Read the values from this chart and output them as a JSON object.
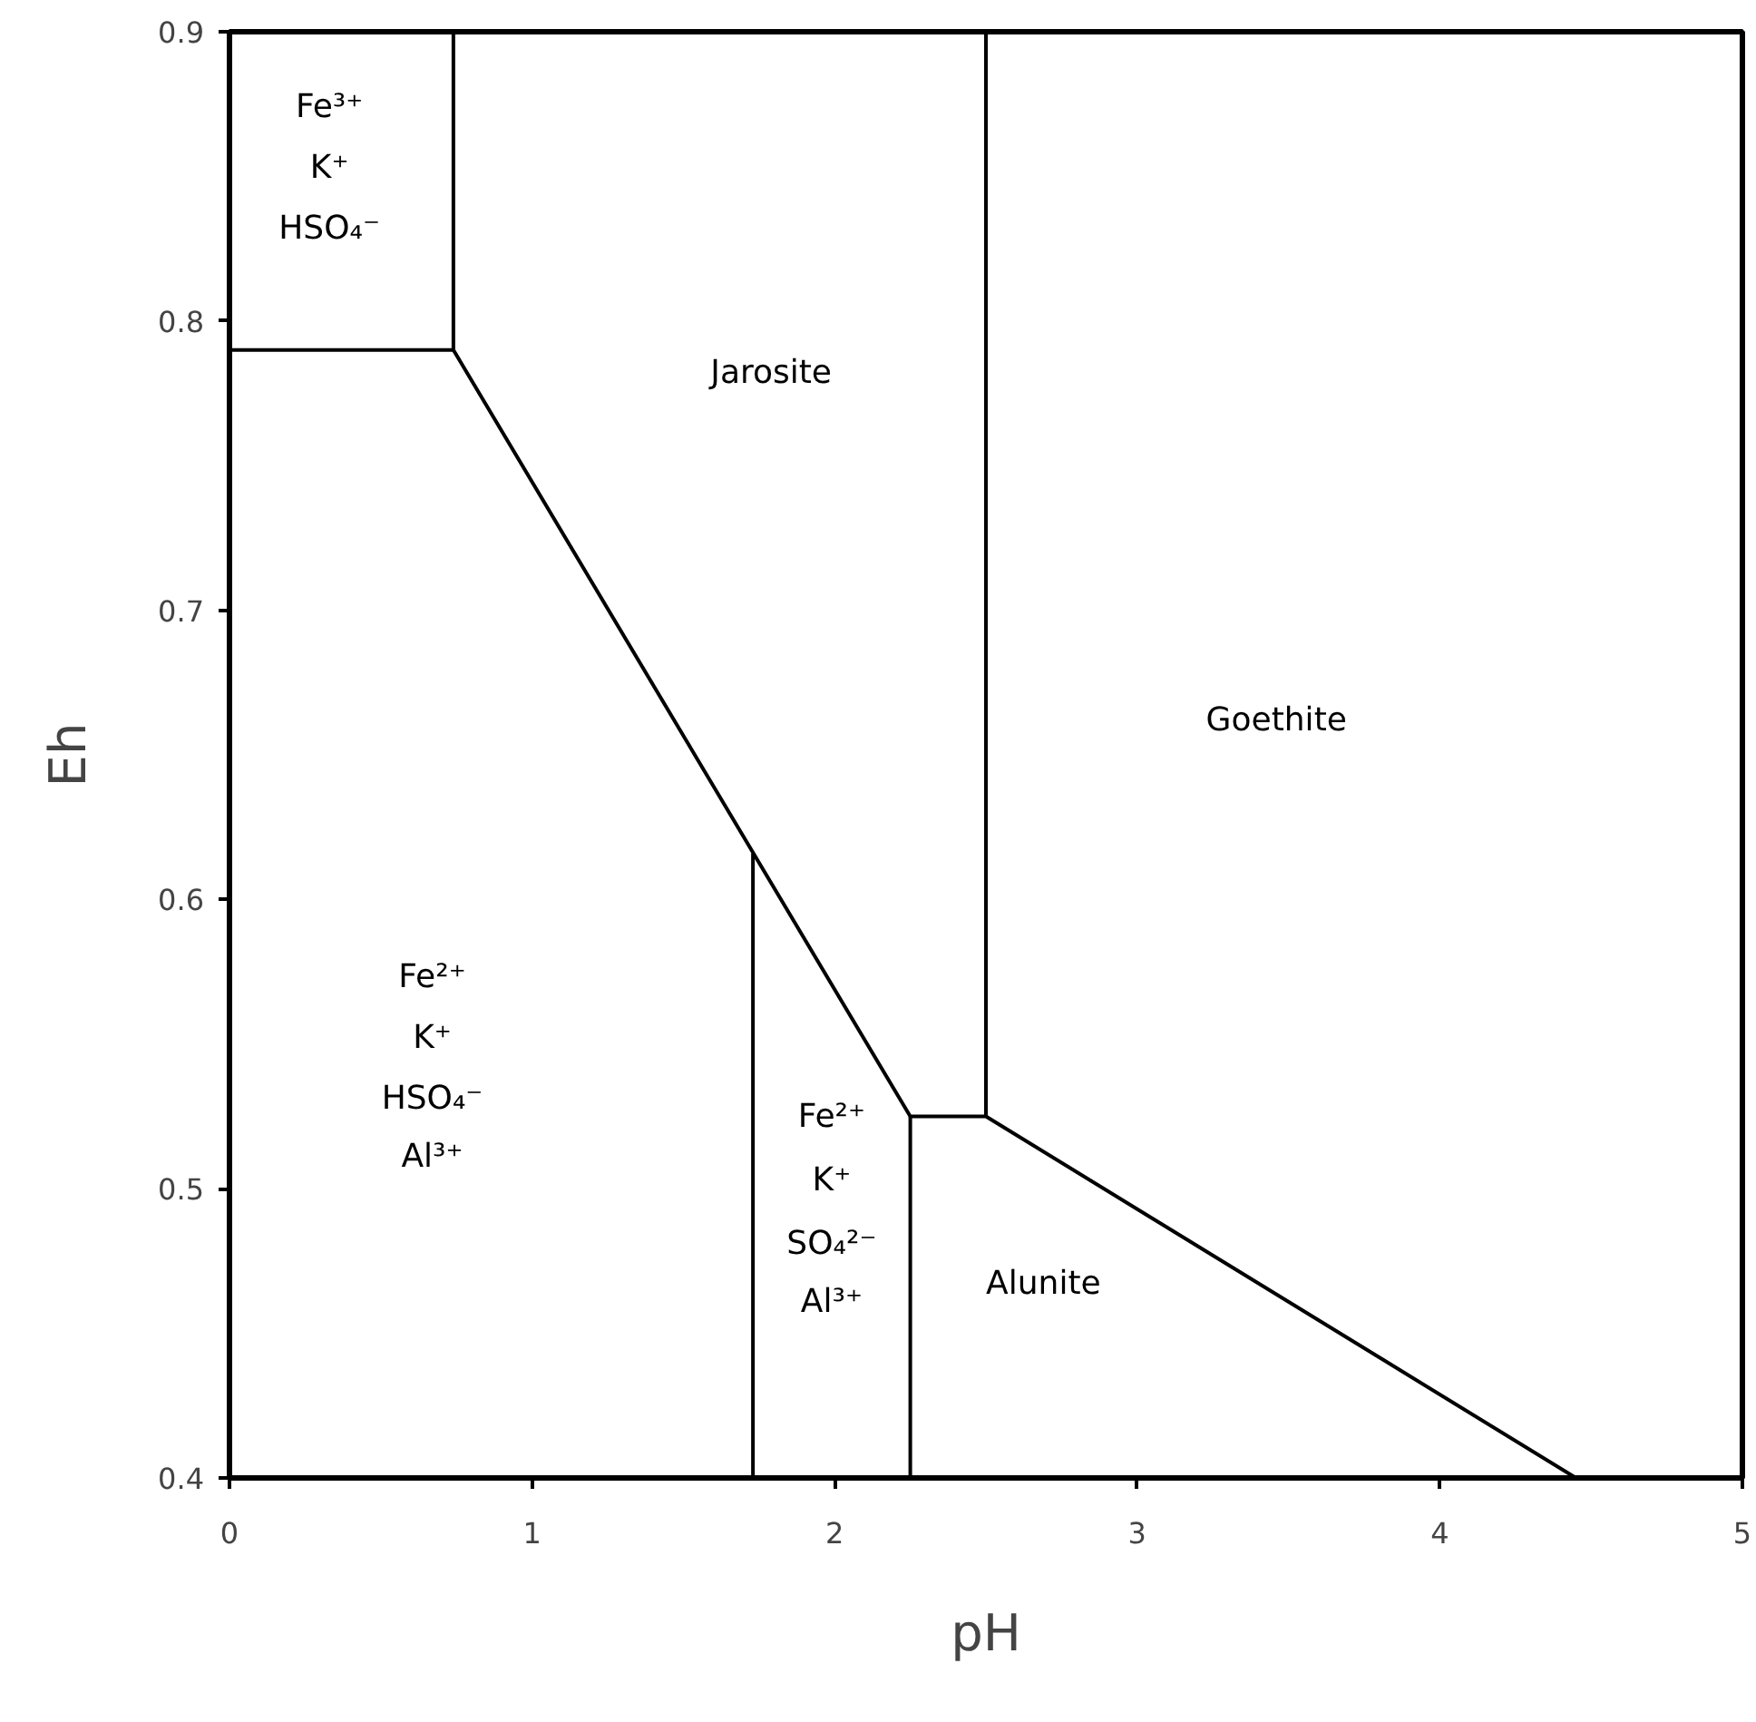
{
  "chart_data": {
    "type": "line",
    "xlabel": "pH",
    "ylabel": "Eh",
    "xlim": [
      0,
      5
    ],
    "ylim": [
      0.4,
      0.9
    ],
    "xticks": [
      0,
      1,
      2,
      3,
      4,
      5
    ],
    "yticks": [
      0.4,
      0.5,
      0.6,
      0.7,
      0.8,
      0.9
    ],
    "grid": false,
    "marker": "none",
    "line_style": "solid",
    "series": [
      {
        "color": "#000000",
        "x": [
          0,
          0.74,
          0.74
        ],
        "values": [
          0.79,
          0.79,
          0.9
        ]
      },
      {
        "color": "#000000",
        "x": [
          0.74,
          2.25,
          2.5,
          4.45
        ],
        "values": [
          0.79,
          0.525,
          0.525,
          0.4
        ]
      },
      {
        "color": "#000000",
        "x": [
          1.73,
          1.73
        ],
        "values": [
          0.4,
          0.616
        ]
      },
      {
        "color": "#000000",
        "x": [
          2.25,
          2.25
        ],
        "values": [
          0.4,
          0.525
        ]
      },
      {
        "color": "#000000",
        "x": [
          2.5,
          2.5
        ],
        "values": [
          0.525,
          0.9
        ]
      }
    ],
    "annotations": [
      "Fe³⁺",
      "K⁺",
      "HSO₄⁻",
      "Jarosite",
      "Goethite",
      "Fe²⁺",
      "K⁺",
      "HSO₄⁻",
      "Al³⁺",
      "Fe²⁺",
      "K⁺",
      "SO₄²⁻",
      "Al³⁺",
      "Alunite"
    ]
  }
}
